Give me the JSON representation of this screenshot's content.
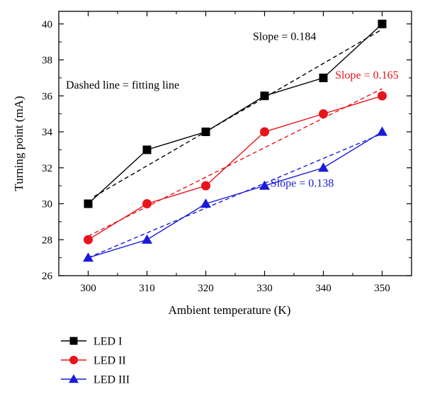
{
  "chart_data": {
    "type": "line",
    "title": "",
    "xlabel": "Ambient temperature (K)",
    "ylabel": "Turning point (mA)",
    "x": [
      300,
      310,
      320,
      330,
      340,
      350
    ],
    "x_ticks": [
      "300",
      "310",
      "320",
      "330",
      "340",
      "350"
    ],
    "y_ticks": [
      "26",
      "28",
      "30",
      "32",
      "34",
      "36",
      "38",
      "40"
    ],
    "xlim": [
      295,
      355
    ],
    "ylim": [
      26,
      40.7
    ],
    "grid": false,
    "legend_position": "bottom-left, below plot",
    "series": [
      {
        "name": "LED I",
        "values": [
          30,
          33,
          34,
          36,
          37,
          40
        ],
        "marker": "square",
        "color": "#000000",
        "fit": {
          "slope": 0.184,
          "start": [
            301,
            30.4
          ],
          "end": [
            350,
            39.7
          ]
        }
      },
      {
        "name": "LED II",
        "values": [
          28,
          30,
          31,
          34,
          35,
          36
        ],
        "marker": "circle",
        "color": "#e8141b",
        "fit": {
          "slope": 0.165,
          "start": [
            300,
            28.2
          ],
          "end": [
            350,
            36.4
          ]
        }
      },
      {
        "name": "LED III",
        "values": [
          27,
          28,
          30,
          31,
          32,
          34
        ],
        "marker": "triangle",
        "color": "#1a1adb",
        "fit": {
          "slope": 0.138,
          "start": [
            300,
            27.0
          ],
          "end": [
            350,
            33.9
          ]
        }
      }
    ],
    "annotations": [
      {
        "text": "Slope = 0.184",
        "color": "#000000",
        "anchor": [
          328,
          39.1
        ]
      },
      {
        "text": "Slope = 0.165",
        "color": "#e8141b",
        "anchor": [
          342,
          36.95
        ]
      },
      {
        "text": "Slope = 0.138",
        "color": "#1a1adb",
        "anchor": [
          331,
          30.95
        ]
      },
      {
        "text": "Dashed line = fitting line",
        "color": "#000000",
        "anchor": [
          296.2,
          36.4
        ]
      }
    ]
  }
}
